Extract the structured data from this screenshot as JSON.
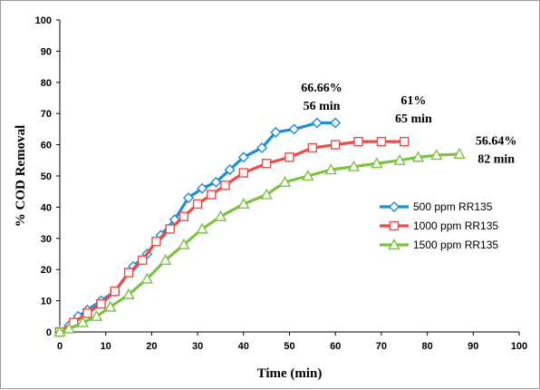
{
  "chart_data": {
    "type": "line",
    "title": "",
    "xlabel": "Time (min)",
    "ylabel": "% COD Removal",
    "xlim": [
      0,
      100
    ],
    "ylim": [
      0,
      100
    ],
    "xticks": [
      0,
      10,
      20,
      30,
      40,
      50,
      60,
      70,
      80,
      90,
      100
    ],
    "yticks": [
      0,
      10,
      20,
      30,
      40,
      50,
      60,
      70,
      80,
      90,
      100
    ],
    "grid": false,
    "legend_position": "right",
    "series": [
      {
        "name": "500 ppm RR135",
        "color": "#1f8dd6",
        "marker": "diamond",
        "x": [
          0,
          2,
          4,
          6,
          9,
          12,
          16,
          19,
          22,
          25,
          28,
          31,
          34,
          37,
          40,
          44,
          47,
          51,
          56,
          60
        ],
        "y": [
          0,
          2,
          5,
          7,
          10,
          13,
          21,
          25,
          31,
          36,
          43,
          46,
          48,
          52,
          56,
          59,
          64,
          65,
          67,
          67
        ]
      },
      {
        "name": "1000 ppm RR135",
        "color": "#ee4b46",
        "marker": "square",
        "x": [
          0,
          3,
          6,
          9,
          12,
          15,
          18,
          21,
          24,
          27,
          30,
          33,
          36,
          40,
          45,
          50,
          55,
          60,
          65,
          70,
          75
        ],
        "y": [
          0,
          3,
          6,
          9,
          13,
          19,
          23,
          29,
          33,
          37,
          41,
          44,
          47,
          51,
          54,
          56,
          59,
          60,
          61,
          61,
          61
        ]
      },
      {
        "name": "1500 ppm RR135",
        "color": "#7dc242",
        "marker": "triangle",
        "x": [
          0,
          2,
          5,
          8,
          11,
          15,
          19,
          23,
          27,
          31,
          35,
          40,
          45,
          49,
          54,
          59,
          64,
          69,
          74,
          78,
          82,
          87
        ],
        "y": [
          0,
          1,
          3,
          5,
          8,
          12,
          17,
          23,
          28,
          33,
          37,
          41,
          44,
          48,
          50,
          52,
          53,
          54,
          55,
          56,
          56.64,
          57
        ]
      }
    ],
    "annotations": [
      {
        "lines": [
          "66.66%",
          "56 min"
        ],
        "x": 57,
        "y": 77
      },
      {
        "lines": [
          "61%",
          "65 min"
        ],
        "x": 77,
        "y": 73
      },
      {
        "lines": [
          "56.64%",
          "82 min"
        ],
        "x": 95,
        "y": 60
      }
    ]
  }
}
